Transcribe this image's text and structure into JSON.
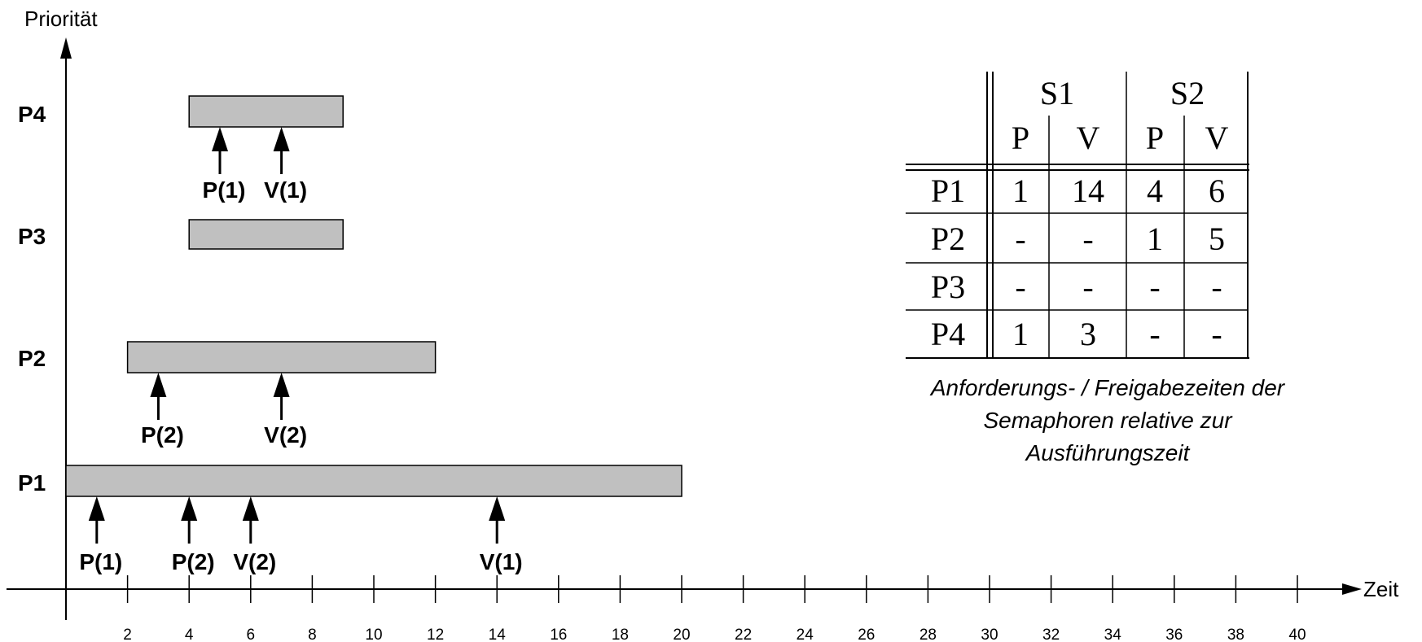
{
  "axes": {
    "y_label": "Priorität",
    "x_label": "Zeit",
    "x_ticks": [
      "2",
      "4",
      "6",
      "8",
      "10",
      "12",
      "14",
      "16",
      "18",
      "20",
      "22",
      "24",
      "26",
      "28",
      "30",
      "32",
      "34",
      "36",
      "38",
      "40"
    ]
  },
  "processes": [
    {
      "name": "P4",
      "bar": {
        "start": 4,
        "end": 9
      },
      "markers": [
        {
          "label": "P(1)",
          "time": 5
        },
        {
          "label": "V(1)",
          "time": 7
        }
      ]
    },
    {
      "name": "P3",
      "bar": {
        "start": 4,
        "end": 9
      },
      "markers": []
    },
    {
      "name": "P2",
      "bar": {
        "start": 2,
        "end": 12
      },
      "markers": [
        {
          "label": "P(2)",
          "time": 3
        },
        {
          "label": "V(2)",
          "time": 7
        }
      ]
    },
    {
      "name": "P1",
      "bar": {
        "start": 0,
        "end": 20
      },
      "markers": [
        {
          "label": "P(1)",
          "time": 1
        },
        {
          "label": "P(2)",
          "time": 4
        },
        {
          "label": "V(2)",
          "time": 6
        },
        {
          "label": "V(1)",
          "time": 14
        }
      ]
    }
  ],
  "table": {
    "groups": [
      "S1",
      "S2"
    ],
    "subheaders": [
      "P",
      "V",
      "P",
      "V"
    ],
    "rows": [
      {
        "label": "P1",
        "cells": [
          "1",
          "14",
          "4",
          "6"
        ]
      },
      {
        "label": "P2",
        "cells": [
          "-",
          "-",
          "1",
          "5"
        ]
      },
      {
        "label": "P3",
        "cells": [
          "-",
          "-",
          "-",
          "-"
        ]
      },
      {
        "label": "P4",
        "cells": [
          "1",
          "3",
          "-",
          "-"
        ]
      }
    ],
    "caption": [
      "Anforderungs- / Freigabezeiten der",
      "Semaphoren relative zur",
      "Ausführungszeit"
    ]
  },
  "colors": {
    "bar_fill": "#c0c0c0",
    "line": "#000000"
  }
}
